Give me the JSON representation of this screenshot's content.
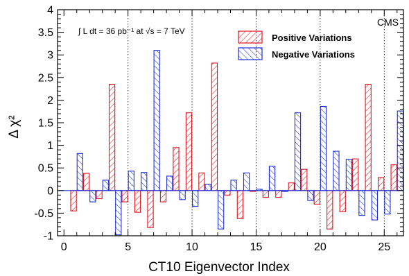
{
  "chart_data": {
    "type": "bar",
    "xlabel": "CT10 Eigenvector Index",
    "ylabel": "Δ χ²",
    "xlim": [
      -0.5,
      26.5
    ],
    "ylim": [
      -1,
      4
    ],
    "xticks": [
      0,
      5,
      10,
      15,
      20,
      25
    ],
    "yticks": [
      -1,
      -0.5,
      0,
      0.5,
      1,
      1.5,
      2,
      2.5,
      3,
      3.5,
      4
    ],
    "ytick_labels": [
      "-1",
      "-0.5",
      "0",
      "0.5",
      "1",
      "1.5",
      "2",
      "2.5",
      "3",
      "3.5",
      "4"
    ],
    "vertical_dotted_lines": [
      5,
      10,
      15,
      20,
      25
    ],
    "lumi_text": "∫ L dt = 36 pb⁻¹ at √s = 7 TeV",
    "experiment_label": "CMS",
    "legend_position": "top-right",
    "series": [
      {
        "name": "Positive Variations",
        "color": "#e0141e",
        "x": [
          1,
          2,
          3,
          4,
          5,
          6,
          7,
          8,
          9,
          10,
          11,
          12,
          13,
          14,
          15,
          16,
          17,
          18,
          19,
          20,
          21,
          22,
          23,
          24,
          25,
          26
        ],
        "values": [
          -0.45,
          0.38,
          -0.18,
          2.35,
          -0.25,
          -0.48,
          -0.82,
          -0.25,
          0.95,
          1.72,
          0.39,
          2.82,
          -0.1,
          -0.62,
          0.0,
          -0.15,
          -0.15,
          0.17,
          0.47,
          -0.3,
          -0.85,
          -0.47,
          0.7,
          2.35,
          0.29,
          0.57
        ]
      },
      {
        "name": "Negative Variations",
        "color": "#1c2fd6",
        "x": [
          1,
          2,
          3,
          4,
          5,
          6,
          7,
          8,
          9,
          10,
          11,
          12,
          13,
          14,
          15,
          16,
          17,
          18,
          19,
          20,
          21,
          22,
          23,
          24,
          25,
          26
        ],
        "values": [
          0.82,
          -0.25,
          0.23,
          -0.98,
          0.43,
          0.4,
          3.1,
          0.32,
          -0.2,
          -0.35,
          0.14,
          -0.85,
          0.23,
          0.39,
          0.03,
          0.54,
          -0.02,
          1.72,
          -0.22,
          1.86,
          0.87,
          0.69,
          -0.55,
          -0.65,
          -0.52,
          1.76
        ]
      }
    ]
  }
}
